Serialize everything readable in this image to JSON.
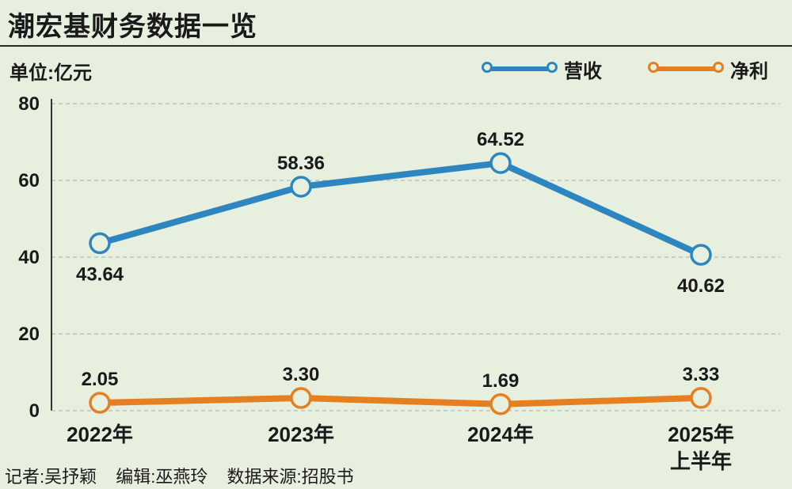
{
  "title": "潮宏基财务数据一览",
  "unit_label": "单位:亿元",
  "colors": {
    "revenue": "#2e86c1",
    "profit": "#e67e22",
    "background": "#e7efdf",
    "gridline": "#b9b9b9",
    "axis": "#333333"
  },
  "legend": [
    {
      "name": "营收",
      "color": "#2e86c1"
    },
    {
      "name": "净利",
      "color": "#e67e22"
    }
  ],
  "chart_data": {
    "type": "line",
    "title": "潮宏基财务数据一览",
    "xlabel": "",
    "ylabel": "单位:亿元",
    "categories": [
      [
        "2022年"
      ],
      [
        "2023年"
      ],
      [
        "2024年"
      ],
      [
        "2025年",
        "上半年"
      ]
    ],
    "ylim": [
      0,
      80
    ],
    "yticks": [
      0,
      20,
      40,
      60,
      80
    ],
    "grid": true,
    "legend_position": "top-right",
    "series": [
      {
        "name": "营收",
        "color": "#2e86c1",
        "values": [
          43.64,
          58.36,
          64.52,
          40.62
        ],
        "labels": [
          "43.64",
          "58.36",
          "64.52",
          "40.62"
        ],
        "label_positions": [
          "below",
          "above",
          "above",
          "below"
        ]
      },
      {
        "name": "净利",
        "color": "#e67e22",
        "values": [
          2.05,
          3.3,
          1.69,
          3.33
        ],
        "labels": [
          "2.05",
          "3.30",
          "1.69",
          "3.33"
        ],
        "label_positions": [
          "above",
          "above",
          "above",
          "above"
        ]
      }
    ]
  },
  "footer": {
    "reporter": "记者:吴抒颖",
    "editor": "编辑:巫燕玲",
    "source": "数据来源:招股书"
  }
}
